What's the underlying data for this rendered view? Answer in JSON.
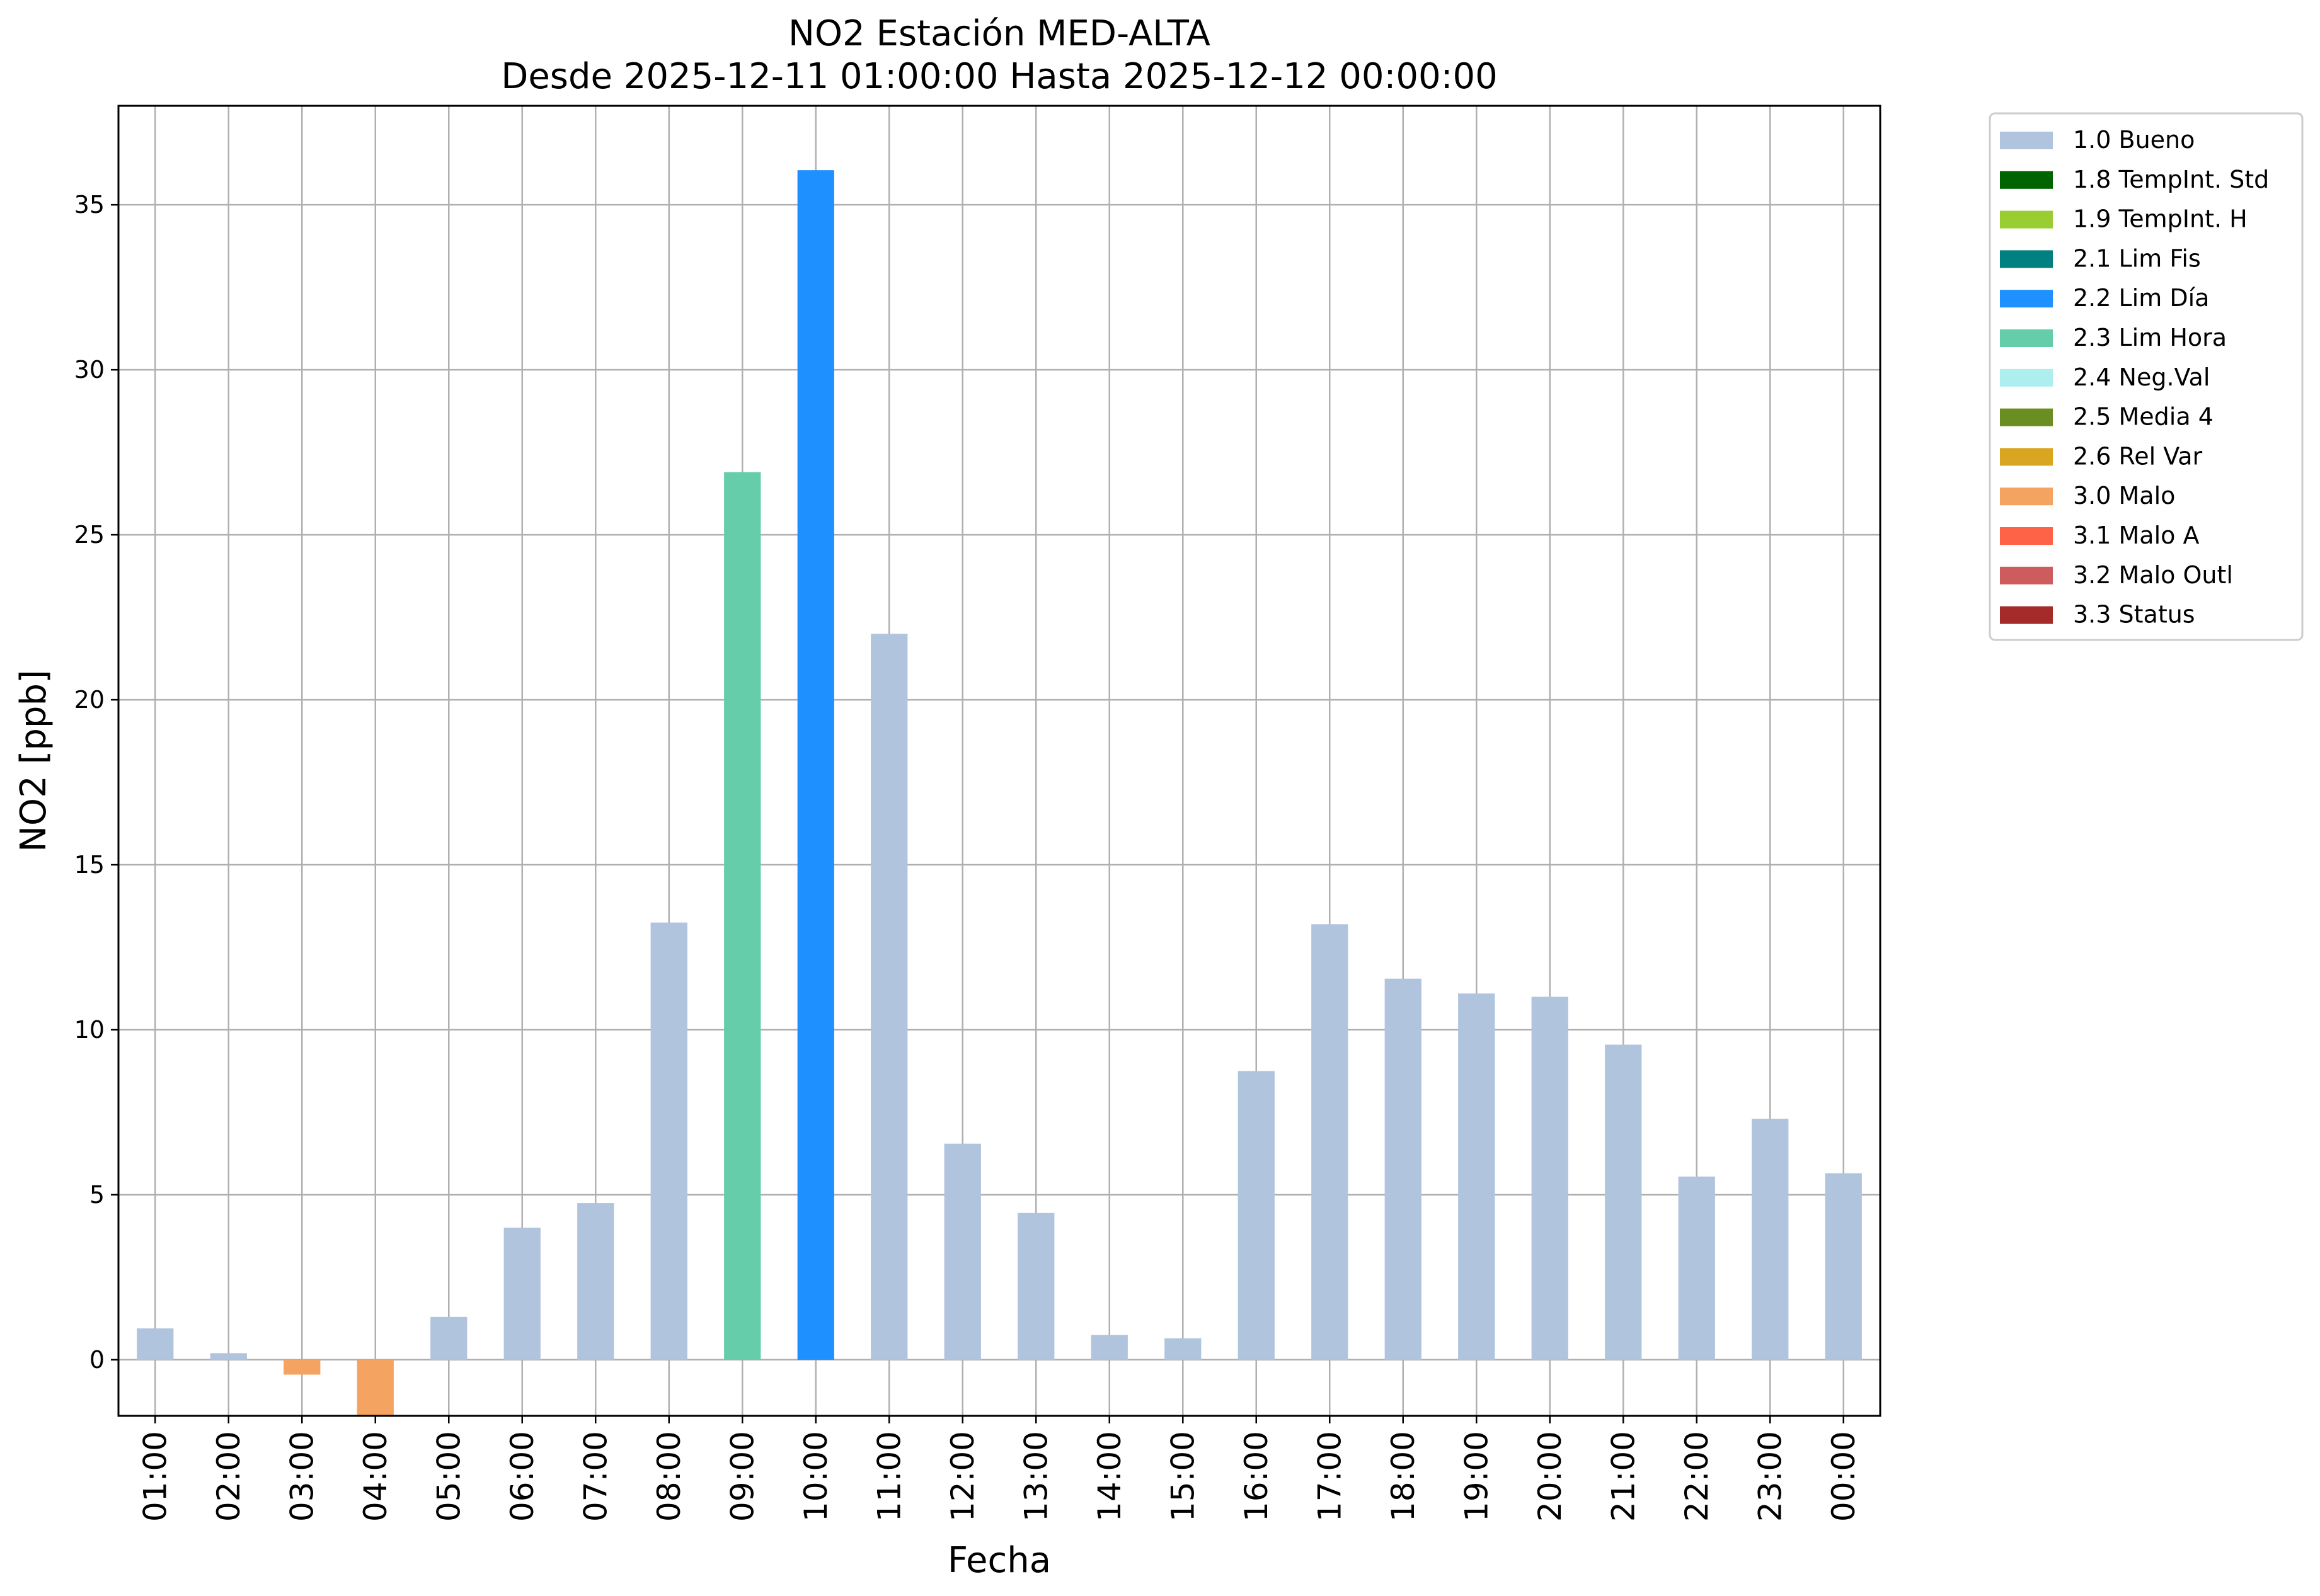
{
  "chart_data": {
    "type": "bar",
    "title": "NO2 Estación MED-ALTA",
    "subtitle": "Desde 2025-12-11 01:00:00 Hasta 2025-12-12 00:00:00",
    "xlabel": "Fecha",
    "ylabel": "NO2 [ppb]",
    "ylim": [
      -1.7,
      38
    ],
    "yticks": [
      0,
      5,
      10,
      15,
      20,
      25,
      30,
      35
    ],
    "grid": true,
    "legend_position": "outside top-right",
    "categories": [
      "01:00",
      "02:00",
      "03:00",
      "04:00",
      "05:00",
      "06:00",
      "07:00",
      "08:00",
      "09:00",
      "10:00",
      "11:00",
      "12:00",
      "13:00",
      "14:00",
      "15:00",
      "16:00",
      "17:00",
      "18:00",
      "19:00",
      "20:00",
      "21:00",
      "22:00",
      "23:00",
      "00:00"
    ],
    "values": [
      0.95,
      0.2,
      -0.45,
      -1.7,
      1.3,
      4.0,
      4.75,
      13.25,
      26.9,
      36.05,
      22.0,
      6.55,
      4.45,
      0.75,
      0.65,
      8.75,
      13.2,
      11.55,
      11.1,
      11.0,
      9.55,
      5.55,
      7.3,
      5.65
    ],
    "flags": [
      "1.0 Bueno",
      "1.0 Bueno",
      "3.0 Malo",
      "3.0 Malo",
      "1.0 Bueno",
      "1.0 Bueno",
      "1.0 Bueno",
      "1.0 Bueno",
      "2.3 Lim Hora",
      "2.2 Lim Día",
      "1.0 Bueno",
      "1.0 Bueno",
      "1.0 Bueno",
      "1.0 Bueno",
      "1.0 Bueno",
      "1.0 Bueno",
      "1.0 Bueno",
      "1.0 Bueno",
      "1.0 Bueno",
      "1.0 Bueno",
      "1.0 Bueno",
      "1.0 Bueno",
      "1.0 Bueno",
      "1.0 Bueno"
    ],
    "legend": [
      {
        "label": "1.0 Bueno",
        "color": "#b0c4de"
      },
      {
        "label": "1.8 TempInt. Std",
        "color": "#006400"
      },
      {
        "label": "1.9 TempInt. H",
        "color": "#9acd32"
      },
      {
        "label": "2.1 Lim Fis",
        "color": "#008080"
      },
      {
        "label": "2.2 Lim Día",
        "color": "#1e90ff"
      },
      {
        "label": "2.3 Lim Hora",
        "color": "#66cdaa"
      },
      {
        "label": "2.4 Neg.Val",
        "color": "#afeeee"
      },
      {
        "label": "2.5 Media 4",
        "color": "#6b8e23"
      },
      {
        "label": "2.6 Rel Var",
        "color": "#daa520"
      },
      {
        "label": "3.0 Malo",
        "color": "#f4a460"
      },
      {
        "label": "3.1 Malo A",
        "color": "#ff6347"
      },
      {
        "label": "3.2 Malo Outl",
        "color": "#cd5c5c"
      },
      {
        "label": "3.3 Status",
        "color": "#a52a2a"
      }
    ]
  }
}
